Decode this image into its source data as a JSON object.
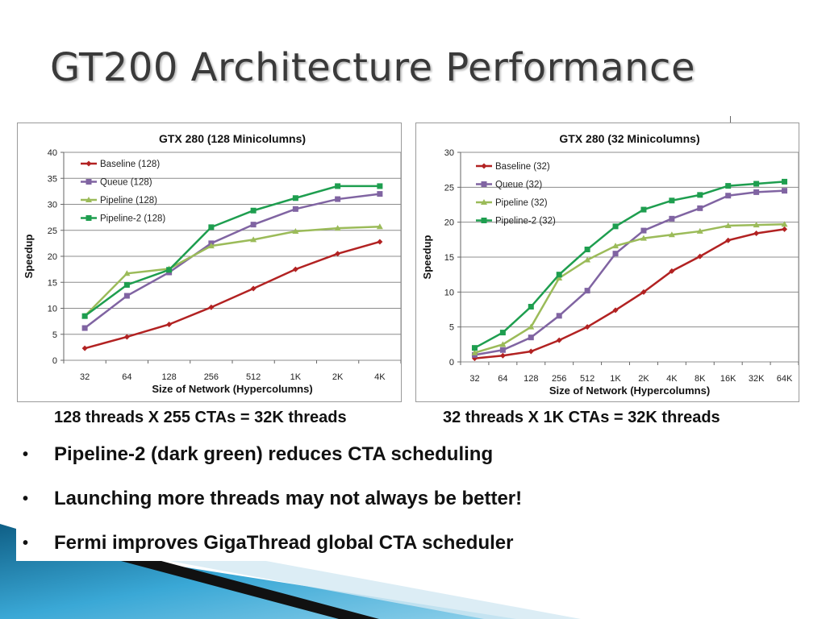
{
  "slide": {
    "title": "GT200 Architecture Performance",
    "captions": [
      "128 threads X 255 CTAs = 32K threads",
      "32 threads X 1K CTAs = 32K threads"
    ],
    "bullets": [
      "Pipeline-2 (dark green) reduces CTA scheduling",
      "Launching more threads may not always be better!",
      "Fermi improves GigaThread global CTA scheduler"
    ],
    "bullet_marker": "•"
  },
  "colors": {
    "baseline": "#b22222",
    "queue": "#8064a2",
    "pipeline": "#9bbb59",
    "pipeline2": "#1e9e4f",
    "grid": "#8c8c8c",
    "footer_blue": "#2a8fbd",
    "footer_dark": "#141414"
  },
  "chart_data": [
    {
      "type": "line",
      "title": "GTX 280 (128 Minicolumns)",
      "xlabel": "Size of Network (Hypercolumns)",
      "ylabel": "Speedup",
      "categories": [
        "32",
        "64",
        "128",
        "256",
        "512",
        "1K",
        "2K",
        "4K"
      ],
      "ylim": [
        0,
        40
      ],
      "yticks": [
        0,
        5,
        10,
        15,
        20,
        25,
        30,
        35,
        40
      ],
      "grid": true,
      "legend": "top-left",
      "series": [
        {
          "name": "Baseline (128)",
          "key": "baseline",
          "marker": "diamond",
          "values": [
            2.3,
            4.5,
            6.9,
            10.2,
            13.8,
            17.5,
            20.5,
            22.8
          ]
        },
        {
          "name": "Queue (128)",
          "key": "queue",
          "marker": "square",
          "values": [
            6.2,
            12.4,
            16.9,
            22.5,
            26.1,
            29.1,
            31.0,
            32.0
          ]
        },
        {
          "name": "Pipeline (128)",
          "key": "pipeline",
          "marker": "triangle",
          "values": [
            8.5,
            16.7,
            17.6,
            22.0,
            23.2,
            24.8,
            25.4,
            25.7
          ]
        },
        {
          "name": "Pipeline-2 (128)",
          "key": "pipeline2",
          "marker": "square",
          "values": [
            8.5,
            14.5,
            17.4,
            25.6,
            28.8,
            31.2,
            33.5,
            33.5
          ]
        }
      ]
    },
    {
      "type": "line",
      "title": "GTX 280 (32 Minicolumns)",
      "xlabel": "Size of Network (Hypercolumns)",
      "ylabel": "Speedup",
      "categories": [
        "32",
        "64",
        "128",
        "256",
        "512",
        "1K",
        "2K",
        "4K",
        "8K",
        "16K",
        "32K",
        "64K"
      ],
      "ylim": [
        0,
        30
      ],
      "yticks": [
        0,
        5,
        10,
        15,
        20,
        25,
        30
      ],
      "grid": true,
      "legend": "top-left",
      "series": [
        {
          "name": "Baseline (32)",
          "key": "baseline",
          "marker": "diamond",
          "values": [
            0.5,
            0.9,
            1.5,
            3.1,
            5.0,
            7.4,
            10.0,
            13.0,
            15.1,
            17.4,
            18.4,
            19.0
          ]
        },
        {
          "name": "Queue (32)",
          "key": "queue",
          "marker": "square",
          "values": [
            1.0,
            1.7,
            3.5,
            6.6,
            10.2,
            15.5,
            18.8,
            20.5,
            22.0,
            23.8,
            24.3,
            24.5
          ]
        },
        {
          "name": "Pipeline (32)",
          "key": "pipeline",
          "marker": "triangle",
          "values": [
            1.3,
            2.5,
            5.0,
            12.0,
            14.6,
            16.6,
            17.7,
            18.2,
            18.7,
            19.5,
            19.6,
            19.7
          ]
        },
        {
          "name": "Pipeline-2 (32)",
          "key": "pipeline2",
          "marker": "square",
          "values": [
            2.0,
            4.2,
            7.9,
            12.5,
            16.1,
            19.4,
            21.8,
            23.1,
            23.9,
            25.2,
            25.5,
            25.8
          ]
        }
      ]
    }
  ]
}
